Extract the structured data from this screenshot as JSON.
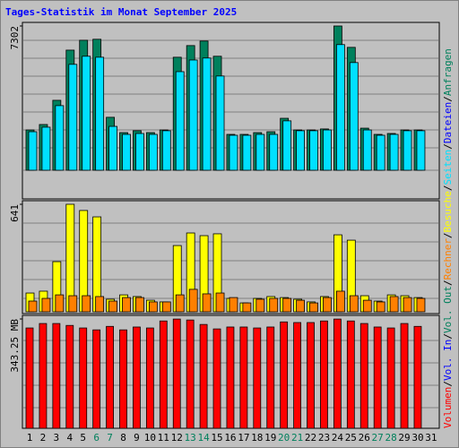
{
  "chart_data": {
    "type": "bar",
    "title": "Tages-Statistik im Monat September 2025",
    "categories": [
      "1",
      "2",
      "3",
      "4",
      "5",
      "6",
      "7",
      "8",
      "9",
      "10",
      "11",
      "12",
      "13",
      "14",
      "15",
      "16",
      "17",
      "18",
      "19",
      "20",
      "21",
      "22",
      "23",
      "24",
      "25",
      "26",
      "27",
      "28",
      "29",
      "30",
      "31"
    ],
    "highlighted_categories": [
      "6",
      "7",
      "13",
      "14",
      "20",
      "21",
      "27",
      "28"
    ],
    "label_color": "#000000",
    "highlight_color": "#00805c",
    "side_separator": "/",
    "side_labels": [
      {
        "text": "Volumen",
        "color": "#ff0000"
      },
      {
        "text": "Vol. In",
        "color": "#0000ff"
      },
      {
        "text": "Vol. Out",
        "color": "#00805c"
      },
      {
        "text": "Rechner",
        "color": "#ff8000"
      },
      {
        "text": "Besuche",
        "color": "#ffff00"
      },
      {
        "text": "Seiten",
        "color": "#00e0ff"
      },
      {
        "text": "Dateien",
        "color": "#0000ff"
      },
      {
        "text": "Anfragen",
        "color": "#00805c"
      }
    ],
    "panels": [
      {
        "ylim": [
          0,
          7302
        ],
        "yticks": [
          7302
        ],
        "series": [
          {
            "color": "#00805c",
            "values": [
              2040,
              2315,
              3540,
              6080,
              6580,
              6630,
              2680,
              1905,
              2000,
              1905,
              2040,
              5720,
              6310,
              6540,
              5770,
              1815,
              1815,
              1905,
              1950,
              2630,
              2040,
              2040,
              2090,
              7302,
              6220,
              2130,
              1815,
              1860,
              2040,
              2040,
              null
            ]
          },
          {
            "color": "#00e0ff",
            "values": [
              1950,
              2180,
              3270,
              5360,
              5770,
              5720,
              2220,
              1815,
              1860,
              1815,
              2000,
              4990,
              5580,
              5680,
              4770,
              1770,
              1770,
              1815,
              1815,
              2500,
              2000,
              2000,
              2040,
              6360,
              5450,
              2040,
              1770,
              1815,
              2000,
              2000,
              null
            ]
          }
        ]
      },
      {
        "ylim": [
          0,
          641
        ],
        "yticks": [
          641
        ],
        "series": [
          {
            "color": "#ffff00",
            "values": [
              112,
              123,
              299,
              641,
              604,
              566,
              75,
              101,
              91,
              69,
              59,
              395,
              470,
              454,
              465,
              80,
              53,
              80,
              91,
              85,
              75,
              59,
              91,
              459,
              427,
              96,
              64,
              101,
              96,
              85,
              null
            ]
          },
          {
            "color": "#ff8000",
            "values": [
              64,
              80,
              101,
              96,
              96,
              91,
              64,
              85,
              85,
              59,
              59,
              101,
              134,
              107,
              112,
              85,
              53,
              75,
              80,
              80,
              69,
              53,
              85,
              123,
              96,
              69,
              59,
              91,
              85,
              80,
              null
            ]
          }
        ]
      },
      {
        "ylim": [
          0,
          343.25
        ],
        "yticks": [
          {
            "value": 343.25,
            "label": "343.25 MB"
          }
        ],
        "series": [
          {
            "color": "#ff0000",
            "values": [
              315,
              329,
              329,
              323,
              315,
              309,
              320,
              309,
              318,
              315,
              337,
              343,
              340,
              326,
              312,
              318,
              318,
              315,
              318,
              334,
              332,
              332,
              337,
              343,
              337,
              329,
              318,
              315,
              329,
              320,
              null
            ]
          }
        ]
      }
    ]
  }
}
